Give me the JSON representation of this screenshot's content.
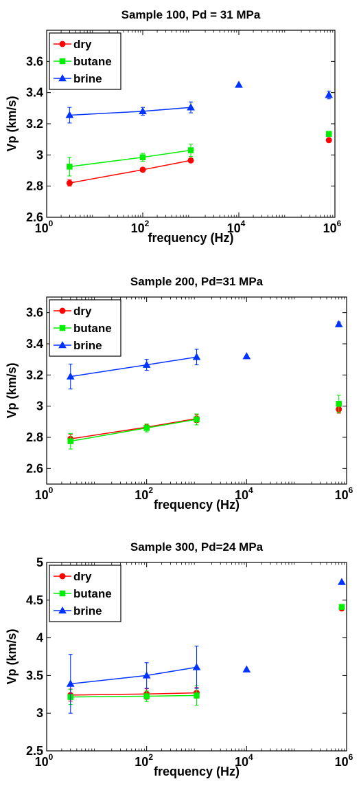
{
  "chart_data": [
    {
      "type": "scatter",
      "title": "Sample 100, Pd = 31 MPa",
      "xlabel": "frequency (Hz)",
      "ylabel": "Vp (km/s)",
      "xscale": "log",
      "xlim": [
        1,
        1000000
      ],
      "ylim": [
        2.6,
        3.8
      ],
      "yticks": [
        2.6,
        2.8,
        3,
        3.2,
        3.4,
        3.6
      ],
      "ytick_labels": [
        "2.6",
        "2.8",
        "3",
        "3.2",
        "3.4",
        "3.6"
      ],
      "xticks": [
        {
          "base": "10",
          "exp": "0",
          "value": 1
        },
        {
          "base": "10",
          "exp": "2",
          "value": 100
        },
        {
          "base": "10",
          "exp": "4",
          "value": 10000
        },
        {
          "base": "10",
          "exp": "6",
          "value": 1000000
        }
      ],
      "legend": {
        "position": "top-left",
        "entries": [
          "dry",
          "butane",
          "brine"
        ]
      },
      "series": [
        {
          "name": "dry",
          "color": "#ff0000",
          "marker": "circle",
          "line": [
            {
              "x": 3,
              "y": 2.82,
              "err": 0.02
            },
            {
              "x": 100,
              "y": 2.905,
              "err": 0.01
            },
            {
              "x": 1000,
              "y": 2.965,
              "err": 0.01
            }
          ],
          "extra": [
            {
              "x": 750000,
              "y": 3.095
            }
          ]
        },
        {
          "name": "butane",
          "color": "#00ee00",
          "marker": "square",
          "line": [
            {
              "x": 3,
              "y": 2.925,
              "err": 0.06
            },
            {
              "x": 100,
              "y": 2.985,
              "err": 0.025
            },
            {
              "x": 1000,
              "y": 3.03,
              "err": 0.04
            }
          ],
          "extra": [
            {
              "x": 750000,
              "y": 3.135
            }
          ]
        },
        {
          "name": "brine",
          "color": "#0033ff",
          "marker": "triangle",
          "line": [
            {
              "x": 3,
              "y": 3.255,
              "err": 0.05
            },
            {
              "x": 100,
              "y": 3.28,
              "err": 0.025
            },
            {
              "x": 1000,
              "y": 3.305,
              "err": 0.035
            }
          ],
          "extra": [
            {
              "x": 10000,
              "y": 3.45
            },
            {
              "x": 750000,
              "y": 3.385,
              "err": 0.025
            }
          ]
        }
      ]
    },
    {
      "type": "scatter",
      "title": "Sample 200, Pd=31 MPa",
      "xlabel": "frequency (Hz)",
      "ylabel": "Vp (km/s)",
      "xscale": "log",
      "xlim": [
        1,
        1000000
      ],
      "ylim": [
        2.5,
        3.7
      ],
      "yticks": [
        2.6,
        2.8,
        3,
        3.2,
        3.4,
        3.6
      ],
      "ytick_labels": [
        "2.6",
        "2.8",
        "3",
        "3.2",
        "3.4",
        "3.6"
      ],
      "xticks": [
        {
          "base": "10",
          "exp": "0",
          "value": 1
        },
        {
          "base": "10",
          "exp": "2",
          "value": 100
        },
        {
          "base": "10",
          "exp": "4",
          "value": 10000
        },
        {
          "base": "10",
          "exp": "6",
          "value": 1000000
        }
      ],
      "legend": {
        "position": "top-left",
        "entries": [
          "dry",
          "butane",
          "brine"
        ]
      },
      "series": [
        {
          "name": "dry",
          "color": "#ff0000",
          "marker": "circle",
          "line": [
            {
              "x": 3,
              "y": 2.79,
              "err": 0.03
            },
            {
              "x": 100,
              "y": 2.865,
              "err": 0.02
            },
            {
              "x": 1000,
              "y": 2.92,
              "err": 0.025
            }
          ],
          "extra": [
            {
              "x": 700000,
              "y": 2.98,
              "err": 0.025
            }
          ]
        },
        {
          "name": "butane",
          "color": "#00ee00",
          "marker": "square",
          "line": [
            {
              "x": 3,
              "y": 2.775,
              "err": 0.05
            },
            {
              "x": 100,
              "y": 2.86,
              "err": 0.025
            },
            {
              "x": 1000,
              "y": 2.915,
              "err": 0.035
            }
          ],
          "extra": [
            {
              "x": 700000,
              "y": 3.015,
              "err": 0.055
            }
          ]
        },
        {
          "name": "brine",
          "color": "#0033ff",
          "marker": "triangle",
          "line": [
            {
              "x": 3,
              "y": 3.19,
              "err": 0.08
            },
            {
              "x": 100,
              "y": 3.265,
              "err": 0.035
            },
            {
              "x": 1000,
              "y": 3.315,
              "err": 0.05
            }
          ],
          "extra": [
            {
              "x": 10000,
              "y": 3.32
            },
            {
              "x": 700000,
              "y": 3.525,
              "err": 0.015
            }
          ]
        }
      ]
    },
    {
      "type": "scatter",
      "title": "Sample 300, Pd=24 MPa",
      "xlabel": "frequency (Hz)",
      "ylabel": "Vp (km/s)",
      "xscale": "log",
      "xlim": [
        1,
        1000000
      ],
      "ylim": [
        2.5,
        5
      ],
      "yticks": [
        2.5,
        3,
        3.5,
        4,
        4.5,
        5
      ],
      "ytick_labels": [
        "2.5",
        "3",
        "3.5",
        "4",
        "4.5",
        "5"
      ],
      "xticks": [
        {
          "base": "10",
          "exp": "0",
          "value": 1
        },
        {
          "base": "10",
          "exp": "2",
          "value": 100
        },
        {
          "base": "10",
          "exp": "4",
          "value": 10000
        },
        {
          "base": "10",
          "exp": "6",
          "value": 1000000
        }
      ],
      "legend": {
        "position": "top-left",
        "entries": [
          "dry",
          "butane",
          "brine"
        ]
      },
      "series": [
        {
          "name": "dry",
          "color": "#ff0000",
          "marker": "circle",
          "line": [
            {
              "x": 3,
              "y": 3.24,
              "err": 0.08
            },
            {
              "x": 100,
              "y": 3.255,
              "err": 0.07
            },
            {
              "x": 1000,
              "y": 3.27,
              "err": 0.07
            }
          ],
          "extra": [
            {
              "x": 800000,
              "y": 4.39,
              "err": 0.03
            }
          ]
        },
        {
          "name": "butane",
          "color": "#00ee00",
          "marker": "square",
          "line": [
            {
              "x": 3,
              "y": 3.215,
              "err": 0.1
            },
            {
              "x": 100,
              "y": 3.225,
              "err": 0.07
            },
            {
              "x": 1000,
              "y": 3.235,
              "err": 0.13
            }
          ],
          "extra": [
            {
              "x": 800000,
              "y": 4.41,
              "err": 0.03
            }
          ]
        },
        {
          "name": "brine",
          "color": "#0033ff",
          "marker": "triangle",
          "line": [
            {
              "x": 3,
              "y": 3.39,
              "err": 0.39
            },
            {
              "x": 100,
              "y": 3.5,
              "err": 0.17
            },
            {
              "x": 1000,
              "y": 3.61,
              "err": 0.28
            }
          ],
          "extra": [
            {
              "x": 10000,
              "y": 3.58
            },
            {
              "x": 800000,
              "y": 4.74
            }
          ]
        }
      ]
    }
  ]
}
